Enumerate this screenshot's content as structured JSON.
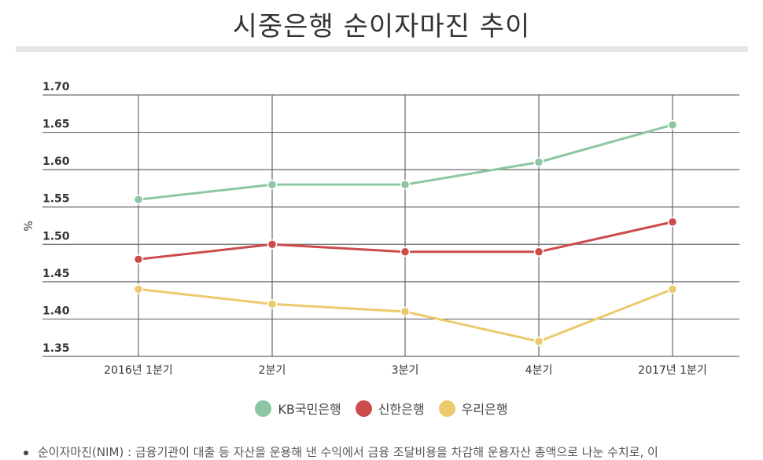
{
  "page_title": "시중은행 순이자마진 추이",
  "chart_data": {
    "type": "line",
    "title": "시중은행 순이자마진 추이",
    "ylabel": "%",
    "xlabel": "",
    "ylim": [
      1.35,
      1.7
    ],
    "yticks": [
      "1.70",
      "1.65",
      "1.60",
      "1.55",
      "1.50",
      "1.45",
      "1.40",
      "1.35"
    ],
    "categories": [
      "2016년 1분기",
      "2분기",
      "3분기",
      "4분기",
      "2017년 1분기"
    ],
    "grid": true,
    "legend_position": "bottom",
    "series": [
      {
        "name": "KB국민은행",
        "color": "#8cc6a2",
        "values": [
          1.56,
          1.58,
          1.58,
          1.61,
          1.66
        ]
      },
      {
        "name": "신한은행",
        "color": "#cc4b4b",
        "values": [
          1.48,
          1.5,
          1.49,
          1.49,
          1.53
        ]
      },
      {
        "name": "우리은행",
        "color": "#ecc96b",
        "values": [
          1.44,
          1.42,
          1.41,
          1.37,
          1.44
        ]
      }
    ]
  },
  "footnote": "순이자마진(NIM) : 금융기관이 대출 등 자산을 운용해 낸 수익에서 금융 조달비용을 차감해 운용자산 총액으로 나눈 수치로, 이"
}
